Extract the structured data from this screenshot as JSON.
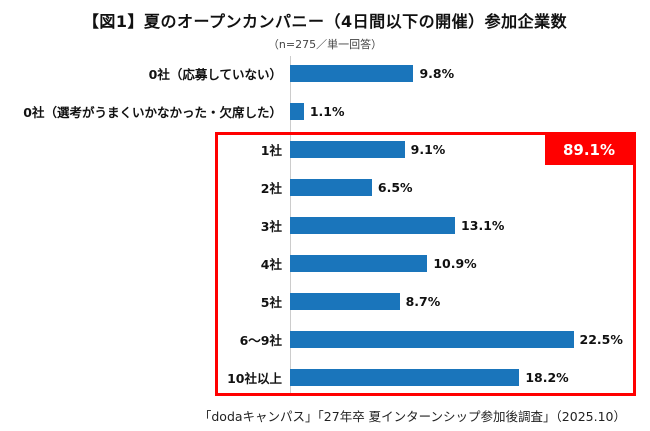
{
  "header": {
    "title": "【図1】夏のオープンカンパニー（4日間以下の開催）参加企業数",
    "subtitle": "（n=275／単一回答）"
  },
  "footer": {
    "source": "「dodaキャンパス」「27年卒 夏インターンシップ参加後調査」（2025.10）"
  },
  "chart_data": {
    "type": "bar",
    "orientation": "horizontal",
    "title": "【図1】夏のオープンカンパニー（4日間以下の開催）参加企業数",
    "subtitle": "（n=275／単一回答）",
    "categories": [
      "0社（応募していない）",
      "0社（選考がうまくいかなかった・欠席した）",
      "1社",
      "2社",
      "3社",
      "4社",
      "5社",
      "6〜9社",
      "10社以上"
    ],
    "values": [
      9.8,
      1.1,
      9.1,
      6.5,
      13.1,
      10.9,
      8.7,
      22.5,
      18.2
    ],
    "value_labels": [
      "9.8%",
      "1.1%",
      "9.1%",
      "6.5%",
      "13.1%",
      "10.9%",
      "8.7%",
      "22.5%",
      "18.2%"
    ],
    "bar_color": "#1a75bb",
    "xlim": [
      0,
      25
    ],
    "grid": false,
    "legend": false,
    "highlight_group": {
      "label": "89.1%",
      "color": "#ff0000",
      "from_category": "1社",
      "to_category": "10社以上",
      "from_index": 2,
      "to_index": 8
    }
  }
}
